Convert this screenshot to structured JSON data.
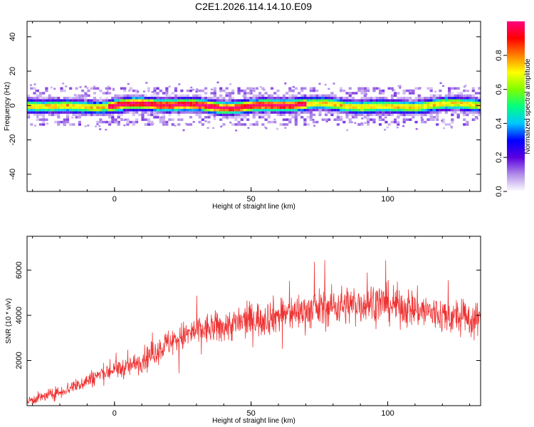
{
  "title": "C2E1.2026.114.14.10.E09",
  "chart_data": [
    {
      "type": "heatmap",
      "name": "spectrogram",
      "xlabel": "Height of straight line (km)",
      "ylabel": "Frequency (Hz)",
      "xlim": [
        -32,
        134
      ],
      "ylim": [
        -50,
        49
      ],
      "xticks": [
        0,
        50,
        100
      ],
      "xtick_labels": [
        "0",
        "50",
        "100"
      ],
      "yticks": [
        -40,
        -20,
        0,
        20,
        40
      ],
      "ytick_labels": [
        "-40",
        "-20",
        "0",
        "20",
        "40"
      ],
      "band_center_hz": 0,
      "band_halfwidth_hz": 6,
      "colorbar": {
        "label": "Normalized spectral amplitude",
        "range": [
          0,
          1
        ],
        "ticks": [
          0.0,
          0.2,
          0.4,
          0.6,
          0.8
        ],
        "tick_labels": [
          "0.0",
          "0.2",
          "0.4",
          "0.6",
          "0.8"
        ],
        "colors": [
          "#ffffff",
          "#b18ce8",
          "#5b00e0",
          "#0000ff",
          "#00c8ff",
          "#00ff80",
          "#80ff00",
          "#ffff00",
          "#ff8000",
          "#ff0000",
          "#ff0080"
        ]
      }
    },
    {
      "type": "line",
      "name": "snr",
      "xlabel": "Height of straight line (km)",
      "ylabel": "SNR (10 * v/v)",
      "xlim": [
        -32,
        134
      ],
      "ylim": [
        0,
        7500
      ],
      "xticks": [
        0,
        50,
        100
      ],
      "xtick_labels": [
        "0",
        "50",
        "100"
      ],
      "yticks": [
        2000,
        4000,
        6000
      ],
      "ytick_labels": [
        "2000",
        "4000",
        "6000"
      ],
      "color": "#ee3333",
      "envelope": {
        "x": [
          -32,
          -20,
          -10,
          -5,
          0,
          5,
          10,
          20,
          30,
          35,
          40,
          50,
          60,
          70,
          80,
          90,
          95,
          100,
          110,
          120,
          125,
          130,
          134
        ],
        "y": [
          200,
          600,
          1100,
          1400,
          1600,
          1700,
          2000,
          2800,
          3300,
          3400,
          3500,
          3800,
          4000,
          4200,
          4400,
          4500,
          4600,
          4500,
          4300,
          4000,
          3900,
          3800,
          3800
        ]
      }
    }
  ]
}
